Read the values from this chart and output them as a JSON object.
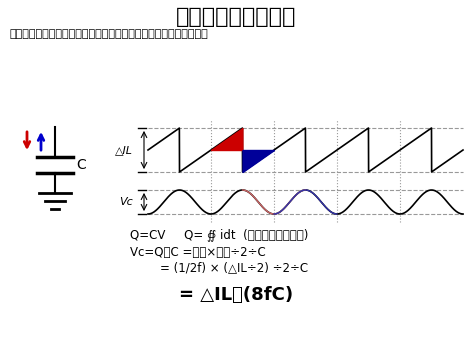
{
  "title": "出力コンデンサの値",
  "subtitle": "コンデンサの内部抑抗を考慮しない場合のリップル電圧を求める。",
  "formula1": "Q=CV     Q= ∯ idt  (電流と時間の面積)",
  "formula2": "Vc=Q／C =底辺×高さ÷2÷C",
  "formula3": "= (1/2f) × (△IL÷2) ÷2÷C",
  "formula4": "= △IL／(8fC)",
  "label_dil": "△IL",
  "label_vc": "Vc",
  "label_c": "C",
  "bg_color": "#ffffff",
  "waveform_color": "#000000",
  "dashed_color": "#999999",
  "red_color": "#cc0000",
  "blue_color": "#000099",
  "red_arrow": "#cc0000",
  "blue_arrow": "#0000cc",
  "red_curve": "#cc6666",
  "blue_curve": "#3333aa"
}
